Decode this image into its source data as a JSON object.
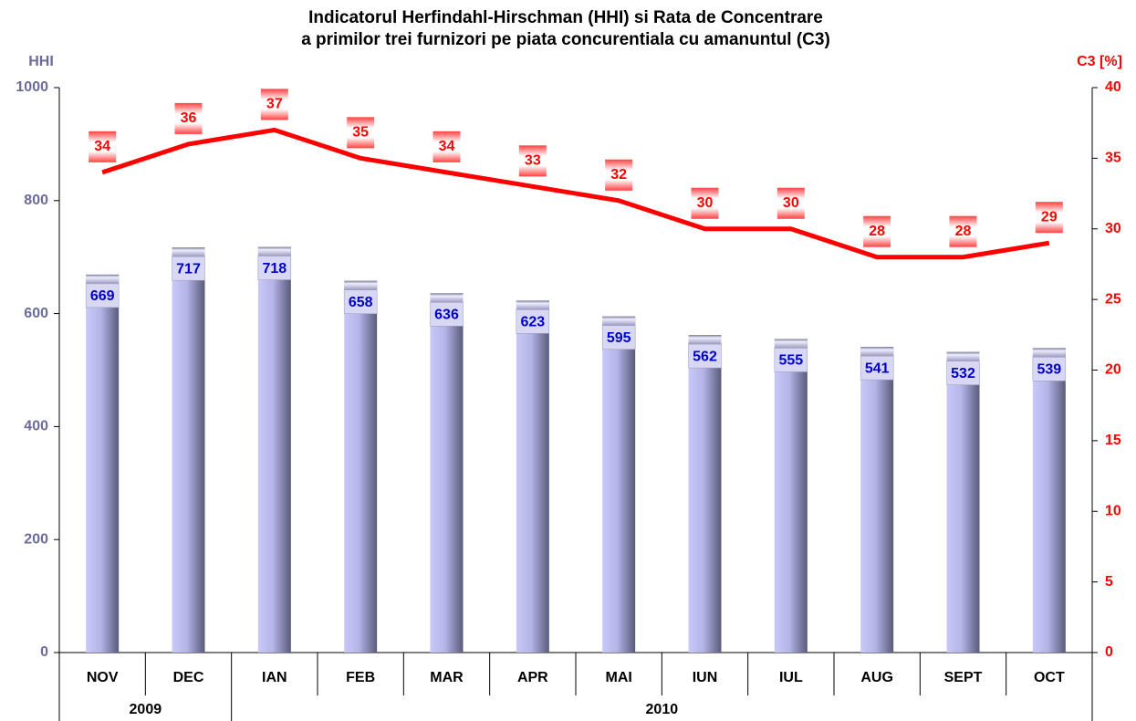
{
  "chart_data": {
    "type": "bar",
    "title": "Indicatorul Herfindahl-Hirschman (HHI) si Rata de Concentrare",
    "subtitle": "a primilor trei furnizori pe piata concurentiala cu amanuntul (C3)",
    "ylabel": "HHI",
    "y2label": "C3 [%]",
    "categories": [
      "NOV",
      "DEC",
      "IAN",
      "FEB",
      "MAR",
      "APR",
      "MAI",
      "IUN",
      "IUL",
      "AUG",
      "SEPT",
      "OCT"
    ],
    "category_groups": [
      "2009",
      null,
      "2010",
      null,
      null,
      null,
      null,
      null,
      null,
      null,
      null,
      null
    ],
    "series": [
      {
        "name": "HHI",
        "type": "bar",
        "color": "#b8b8ee",
        "values": [
          669,
          717,
          718,
          658,
          636,
          623,
          595,
          562,
          555,
          541,
          532,
          539
        ]
      },
      {
        "name": "C3",
        "type": "line",
        "axis": "y2",
        "color": "#ff0000",
        "values": [
          34,
          36,
          37,
          35,
          34,
          33,
          32,
          30,
          30,
          28,
          28,
          29
        ]
      }
    ],
    "ylim": [
      0,
      1000
    ],
    "yticks": [
      0,
      200,
      400,
      600,
      800,
      1000
    ],
    "y2lim": [
      0,
      40
    ],
    "y2ticks": [
      0,
      5,
      10,
      15,
      20,
      25,
      30,
      35,
      40
    ]
  }
}
